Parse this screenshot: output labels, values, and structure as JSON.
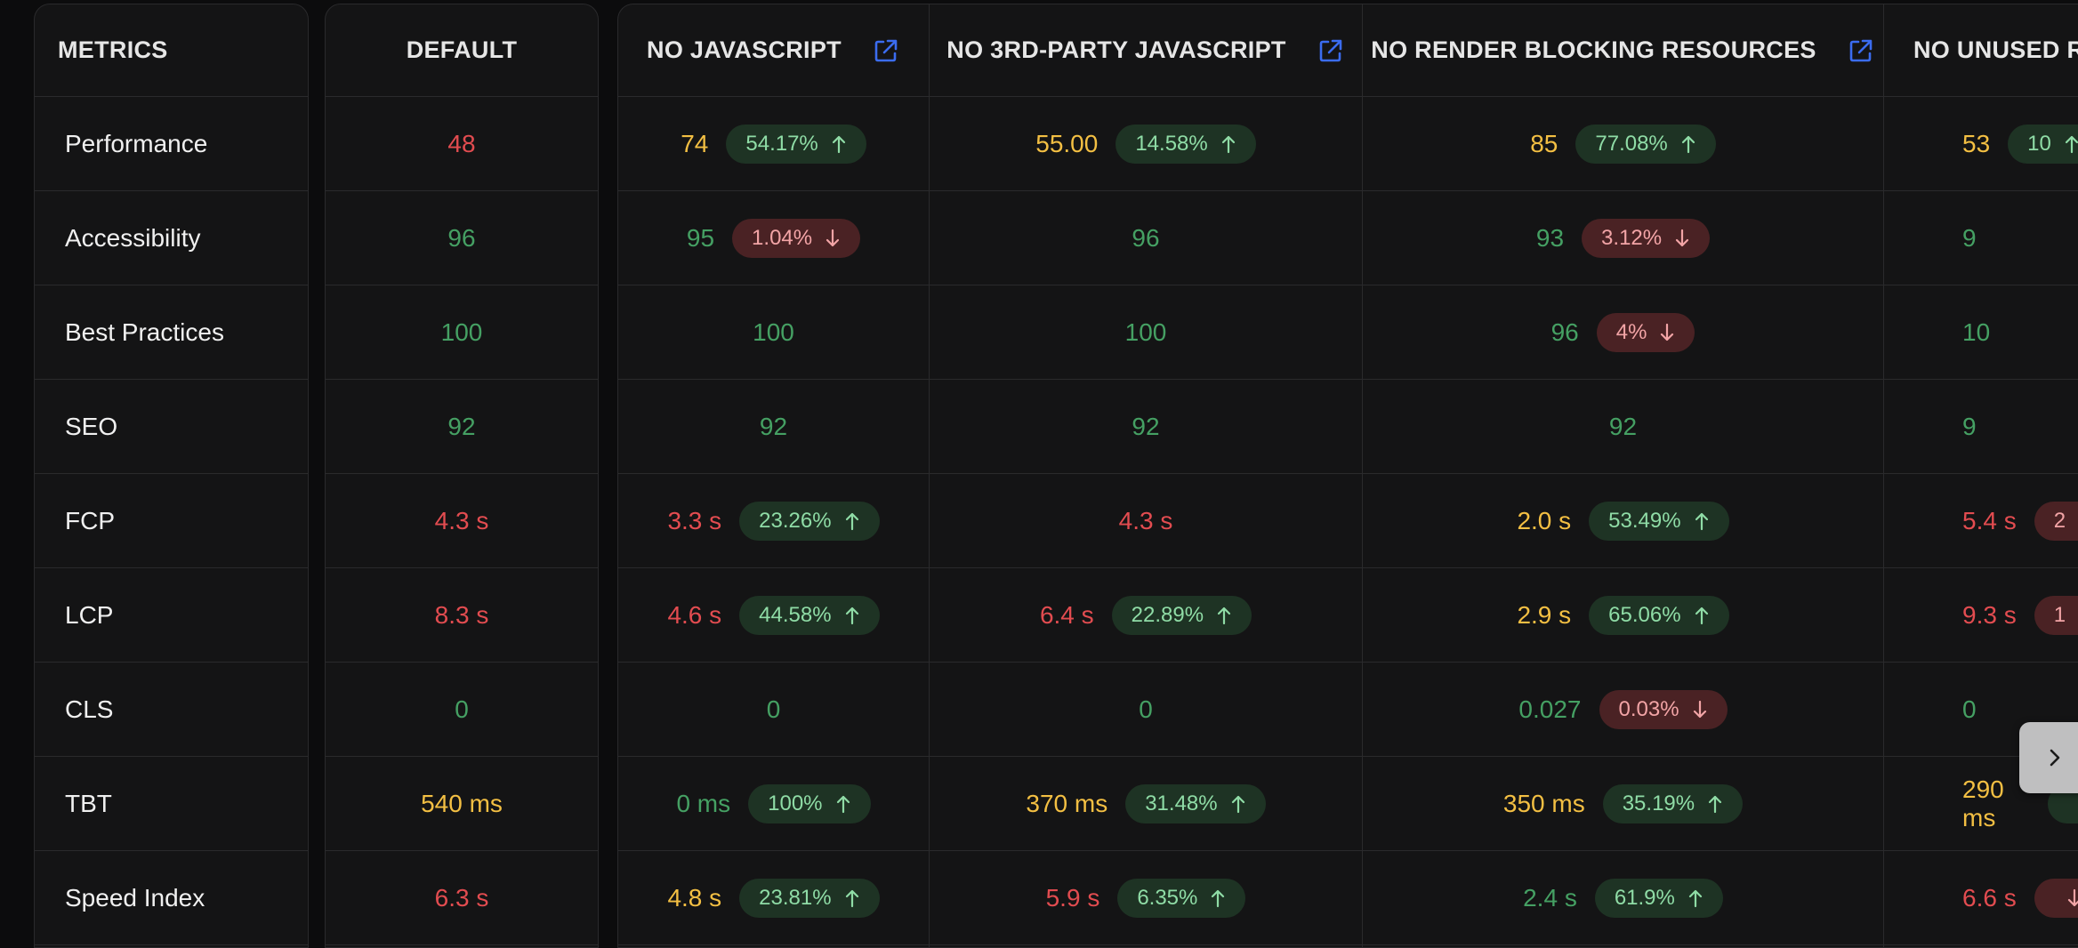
{
  "metrics_header": "METRICS",
  "metrics": [
    "Performance",
    "Accessibility",
    "Best Practices",
    "SEO",
    "FCP",
    "LCP",
    "CLS",
    "TBT",
    "Speed Index"
  ],
  "default": {
    "header": "DEFAULT",
    "values": [
      {
        "v": "48",
        "s": "poor"
      },
      {
        "v": "96",
        "s": "good"
      },
      {
        "v": "100",
        "s": "good"
      },
      {
        "v": "92",
        "s": "good"
      },
      {
        "v": "4.3 s",
        "s": "poor"
      },
      {
        "v": "8.3 s",
        "s": "poor"
      },
      {
        "v": "0",
        "s": "good"
      },
      {
        "v": "540 ms",
        "s": "avg"
      },
      {
        "v": "6.3 s",
        "s": "poor"
      }
    ]
  },
  "comparisons": [
    {
      "header": "NO JAVASCRIPT",
      "external_link_icon": "external-link-icon",
      "cells": [
        {
          "v": "74",
          "s": "avg",
          "d": "54.17%",
          "dir": "up"
        },
        {
          "v": "95",
          "s": "good",
          "d": "1.04%",
          "dir": "down"
        },
        {
          "v": "100",
          "s": "good"
        },
        {
          "v": "92",
          "s": "good"
        },
        {
          "v": "3.3 s",
          "s": "poor",
          "d": "23.26%",
          "dir": "up"
        },
        {
          "v": "4.6 s",
          "s": "poor",
          "d": "44.58%",
          "dir": "up"
        },
        {
          "v": "0",
          "s": "good"
        },
        {
          "v": "0 ms",
          "s": "good",
          "d": "100%",
          "dir": "up"
        },
        {
          "v": "4.8 s",
          "s": "avg",
          "d": "23.81%",
          "dir": "up"
        }
      ]
    },
    {
      "header": "NO 3RD-PARTY JAVASCRIPT",
      "external_link_icon": "external-link-icon",
      "cells": [
        {
          "v": "55.00",
          "s": "avg",
          "d": "14.58%",
          "dir": "up"
        },
        {
          "v": "96",
          "s": "good"
        },
        {
          "v": "100",
          "s": "good"
        },
        {
          "v": "92",
          "s": "good"
        },
        {
          "v": "4.3 s",
          "s": "poor"
        },
        {
          "v": "6.4 s",
          "s": "poor",
          "d": "22.89%",
          "dir": "up"
        },
        {
          "v": "0",
          "s": "good"
        },
        {
          "v": "370 ms",
          "s": "avg",
          "d": "31.48%",
          "dir": "up"
        },
        {
          "v": "5.9 s",
          "s": "poor",
          "d": "6.35%",
          "dir": "up"
        }
      ]
    },
    {
      "header": "NO RENDER BLOCKING RESOURCES",
      "external_link_icon": "external-link-icon",
      "cells": [
        {
          "v": "85",
          "s": "avg",
          "d": "77.08%",
          "dir": "up"
        },
        {
          "v": "93",
          "s": "good",
          "d": "3.12%",
          "dir": "down"
        },
        {
          "v": "96",
          "s": "good",
          "d": "4%",
          "dir": "down"
        },
        {
          "v": "92",
          "s": "good"
        },
        {
          "v": "2.0 s",
          "s": "avg",
          "d": "53.49%",
          "dir": "up"
        },
        {
          "v": "2.9 s",
          "s": "avg",
          "d": "65.06%",
          "dir": "up"
        },
        {
          "v": "0.027",
          "s": "good",
          "d": "0.03%",
          "dir": "down"
        },
        {
          "v": "350 ms",
          "s": "avg",
          "d": "35.19%",
          "dir": "up"
        },
        {
          "v": "2.4 s",
          "s": "good",
          "d": "61.9%",
          "dir": "up"
        }
      ]
    },
    {
      "header": "NO UNUSED R",
      "cells": [
        {
          "v": "53",
          "s": "avg",
          "d": "10",
          "dir": "up"
        },
        {
          "v": "9",
          "s": "good"
        },
        {
          "v": "10",
          "s": "good"
        },
        {
          "v": "9",
          "s": "good"
        },
        {
          "v": "5.4 s",
          "s": "poor",
          "d": "2",
          "dir": "down"
        },
        {
          "v": "9.3 s",
          "s": "poor",
          "d": "1",
          "dir": "down"
        },
        {
          "v": "0",
          "s": "good"
        },
        {
          "v": "290 ms",
          "s": "avg",
          "d": "",
          "dir": "up"
        },
        {
          "v": "6.6 s",
          "s": "poor",
          "d": "",
          "dir": "down"
        }
      ]
    }
  ],
  "colors": {
    "good": "#45a063",
    "average": "#f3bf43",
    "poor": "#e24c50",
    "accent_link": "#3b6cf0"
  },
  "scroll_button_icon": "chevron-right-icon"
}
